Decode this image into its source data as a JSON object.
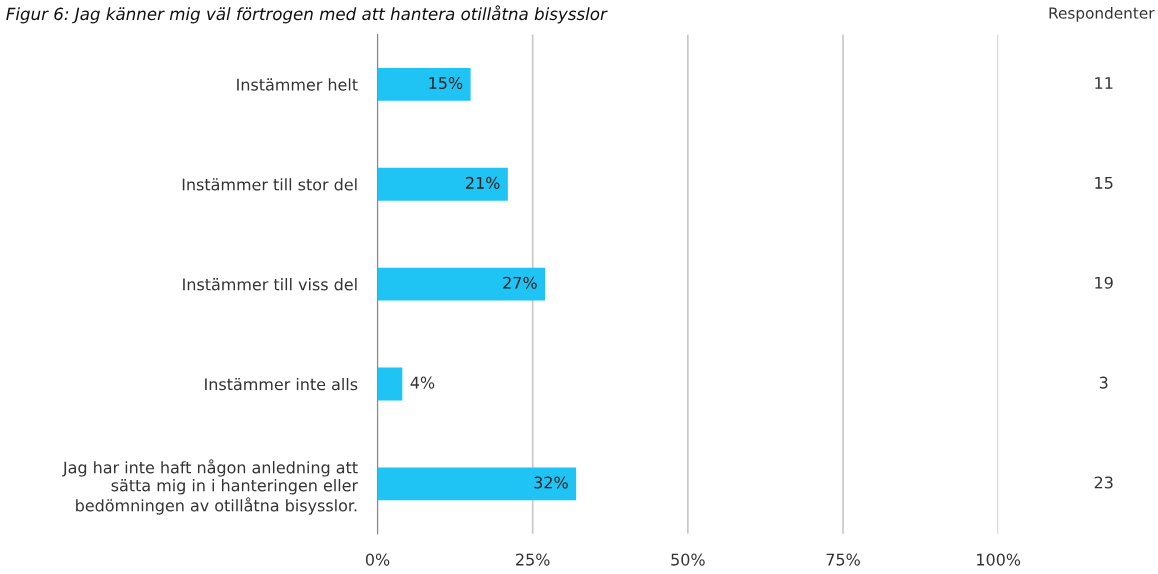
{
  "chart_data": {
    "type": "bar",
    "orientation": "horizontal",
    "title": "Figur 6: Jag känner mig väl förtrogen med att hantera otillåtna bisysslor",
    "categories": [
      "Instämmer helt",
      "Instämmer till stor del",
      "Instämmer till viss del",
      "Instämmer inte alls",
      "Jag har inte haft någon anledning att\nsätta mig in i hanteringen eller\nbedömningen av otillåtna bisysslor."
    ],
    "values": [
      15,
      21,
      27,
      4,
      32
    ],
    "value_labels": [
      "15%",
      "21%",
      "27%",
      "4%",
      "32%"
    ],
    "color": "#20c4f4",
    "xlim": [
      0,
      100
    ],
    "xticks": [
      {
        "value": 0,
        "label": "0%"
      },
      {
        "value": 25,
        "label": "25%"
      },
      {
        "value": 50,
        "label": "50%"
      },
      {
        "value": 75,
        "label": "75%"
      },
      {
        "value": 100,
        "label": "100%"
      }
    ],
    "grid": "x",
    "annotations": [
      "Respondenter",
      "11",
      "15",
      "19",
      "3",
      "23"
    ]
  }
}
